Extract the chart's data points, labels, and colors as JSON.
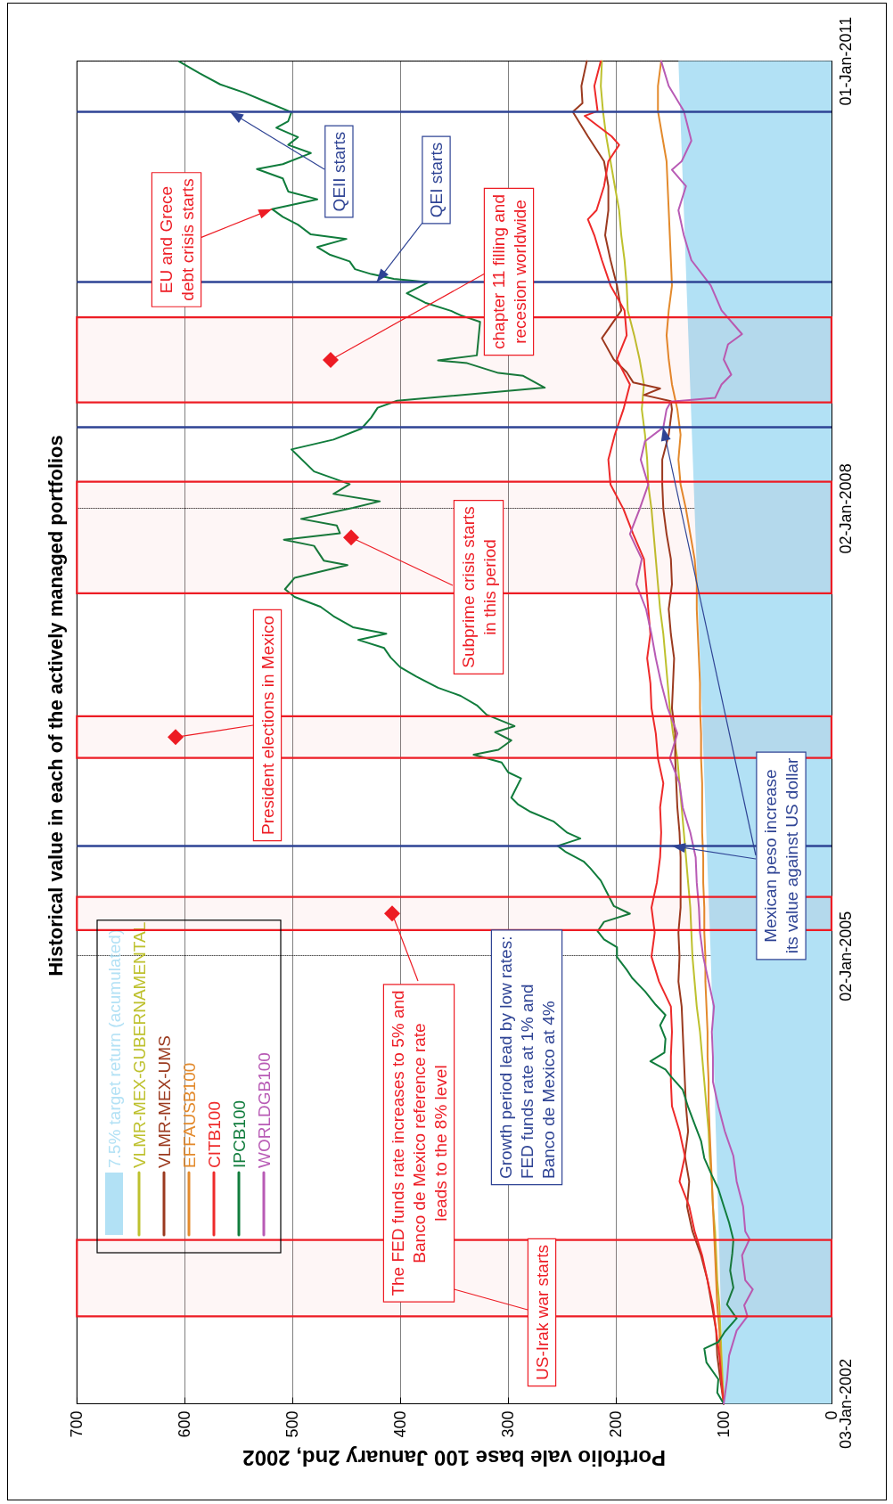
{
  "chart_data": {
    "type": "line",
    "orientation": "horizontal",
    "title": "Historical value in each of the actively managed portfolios",
    "xlabel": "Portfolio vale base 100 January 2nd, 2002",
    "xlim": [
      700,
      0
    ],
    "xticks": [
      0,
      100,
      200,
      300,
      400,
      500,
      600,
      700
    ],
    "ylim": [
      "2002-01-03",
      "2011-01-01"
    ],
    "yticks": [
      {
        "value": "2002-01-03",
        "label": "03-Jan-2002"
      },
      {
        "value": "2005-01-02",
        "label": "02-Jan-2005"
      },
      {
        "value": "2008-01-02",
        "label": "02-Jan-2008"
      },
      {
        "value": "2011-01-01",
        "label": "01-Jan-2011"
      }
    ],
    "grid": true,
    "legend": "bottom left",
    "x": [
      "2002-01-03",
      "2002-03-01",
      "2002-05-01",
      "2002-07-01",
      "2002-09-01",
      "2002-11-01",
      "2003-01-01",
      "2003-03-01",
      "2003-05-01",
      "2003-07-01",
      "2003-09-01",
      "2003-11-01",
      "2004-01-01",
      "2004-03-01",
      "2004-05-01",
      "2004-07-01",
      "2004-09-01",
      "2004-11-01",
      "2005-01-01",
      "2005-03-01",
      "2005-05-01",
      "2005-07-01",
      "2005-09-01",
      "2005-11-01",
      "2006-01-01",
      "2006-03-01",
      "2006-05-01",
      "2006-07-01",
      "2006-09-01",
      "2006-11-01",
      "2007-01-01",
      "2007-03-01",
      "2007-05-01",
      "2007-07-01",
      "2007-09-01",
      "2007-11-01",
      "2008-01-01",
      "2008-03-01",
      "2008-05-01",
      "2008-07-01",
      "2008-09-01",
      "2008-11-01",
      "2009-01-01",
      "2009-03-01",
      "2009-05-01",
      "2009-07-01",
      "2009-09-01",
      "2009-11-01",
      "2010-01-01",
      "2010-03-01",
      "2010-05-01",
      "2010-07-01",
      "2010-09-01",
      "2010-11-01",
      "2011-01-01"
    ],
    "series": [
      {
        "name": "7.5% target return (acumulated)",
        "type": "area",
        "color": "#b2e1f5",
        "x": [
          "2002-01-03",
          "2003-01-01",
          "2004-01-01",
          "2005-01-01",
          "2006-01-01",
          "2007-01-01",
          "2008-01-01",
          "2009-01-01",
          "2010-01-01",
          "2011-01-01"
        ],
        "values": [
          100,
          104,
          108,
          112,
          117,
          122,
          127,
          132,
          137,
          142
        ]
      },
      {
        "name": "VLMR-MEX-GUBERNAMENTAL",
        "color": "#bec12e",
        "values": [
          100,
          101,
          102,
          103,
          104,
          106,
          107,
          108,
          110,
          111,
          113,
          114,
          116,
          118,
          120,
          122,
          125,
          127,
          129,
          130,
          131,
          133,
          135,
          137,
          139,
          141,
          143,
          147,
          150,
          152,
          154,
          156,
          159,
          161,
          163,
          165,
          167,
          170,
          171,
          173,
          176,
          174,
          178,
          183,
          189,
          190,
          192,
          195,
          197,
          201,
          205,
          209,
          212,
          214,
          213
        ]
      },
      {
        "name": "VLMR-MEX-UMS",
        "color": "#9b3a1f",
        "x": [
          "2002-01-03",
          "2002-03-01",
          "2002-05-01",
          "2002-07-01",
          "2002-09-01",
          "2002-11-01",
          "2003-01-01",
          "2003-03-01",
          "2003-05-01",
          "2003-07-01",
          "2003-09-01",
          "2003-11-01",
          "2004-01-01",
          "2004-03-01",
          "2004-05-01",
          "2004-07-01",
          "2004-09-01",
          "2004-11-01",
          "2005-01-01",
          "2005-03-01",
          "2005-05-01",
          "2005-07-01",
          "2005-09-01",
          "2005-11-01",
          "2006-01-01",
          "2006-03-01",
          "2006-05-01",
          "2006-07-01",
          "2006-09-01",
          "2006-11-01",
          "2007-01-01",
          "2007-03-01",
          "2007-05-01",
          "2007-07-01",
          "2007-09-01",
          "2007-11-01",
          "2008-01-01",
          "2008-03-01",
          "2008-05-01",
          "2008-07-01",
          "2008-09-01",
          "2008-09-21",
          "2008-10-06",
          "2008-10-22",
          "2008-11-06",
          "2008-12-01",
          "2009-01-01",
          "2009-02-22",
          "2009-05-01",
          "2009-07-01",
          "2009-09-01",
          "2009-11-01",
          "2010-01-01",
          "2010-03-01",
          "2010-05-01",
          "2010-07-01",
          "2010-08-30",
          "2010-09-20",
          "2010-11-01",
          "2011-01-01"
        ],
        "values": [
          100,
          103,
          106,
          107,
          111,
          115,
          121,
          129,
          134,
          132,
          136,
          133,
          135,
          136,
          137,
          138,
          139,
          142,
          141,
          142,
          140,
          140,
          140,
          141,
          143,
          144,
          145,
          145,
          148,
          147,
          146,
          149,
          151,
          148,
          149,
          153,
          156,
          157,
          157,
          151,
          148,
          149,
          174,
          159,
          184,
          190,
          202,
          213,
          195,
          199,
          205,
          210,
          207,
          207,
          211,
          226,
          240,
          231,
          232,
          227
        ]
      },
      {
        "name": "EFFAUSB100",
        "color": "#e38a2c",
        "values": [
          100,
          102,
          103,
          104,
          106,
          107,
          108,
          109,
          110,
          111,
          112,
          113,
          114,
          114,
          115,
          115,
          116,
          117,
          117,
          118,
          118,
          119,
          119,
          120,
          120,
          120,
          121,
          121,
          122,
          122,
          123,
          124,
          125,
          125,
          127,
          131,
          135,
          140,
          142,
          140,
          143,
          148,
          151,
          153,
          151,
          148,
          149,
          150,
          151,
          152,
          153,
          157,
          161,
          161,
          158
        ]
      },
      {
        "name": "CITB100",
        "color": "#ee2a2a",
        "x": [
          "2002-01-03",
          "2002-03-01",
          "2002-05-01",
          "2002-07-01",
          "2002-09-01",
          "2002-11-01",
          "2003-01-01",
          "2003-03-01",
          "2003-05-01",
          "2003-07-01",
          "2003-09-01",
          "2003-11-01",
          "2004-01-01",
          "2004-03-01",
          "2004-05-01",
          "2004-07-01",
          "2004-09-01",
          "2004-11-01",
          "2005-01-01",
          "2005-03-01",
          "2005-05-01",
          "2005-07-01",
          "2005-09-01",
          "2005-11-01",
          "2006-01-01",
          "2006-03-01",
          "2006-05-01",
          "2006-07-01",
          "2006-09-01",
          "2006-11-01",
          "2007-01-01",
          "2007-03-01",
          "2007-05-01",
          "2007-07-01",
          "2007-09-01",
          "2007-11-01",
          "2008-01-01",
          "2008-03-01",
          "2008-05-01",
          "2008-07-01",
          "2008-09-01",
          "2008-11-01",
          "2009-01-01",
          "2009-03-01",
          "2009-05-01",
          "2009-07-01",
          "2009-09-01",
          "2009-11-01",
          "2009-12-10",
          "2010-01-01",
          "2010-03-01",
          "2010-05-01",
          "2010-06-10",
          "2010-07-01",
          "2010-08-20",
          "2010-09-01",
          "2010-11-01",
          "2011-01-01"
        ],
        "values": [
          100,
          102,
          104,
          107,
          110,
          115,
          120,
          127,
          132,
          141,
          136,
          141,
          148,
          149,
          149,
          148,
          149,
          160,
          167,
          164,
          167,
          162,
          159,
          158,
          159,
          156,
          161,
          163,
          167,
          168,
          171,
          168,
          170,
          172,
          174,
          184,
          193,
          205,
          207,
          201,
          193,
          187,
          199,
          190,
          192,
          205,
          213,
          220,
          226,
          218,
          211,
          207,
          197,
          204,
          229,
          217,
          220,
          214
        ]
      },
      {
        "name": "IPCB100",
        "color": "#107c3c",
        "x": [
          "2002-01-03",
          "2002-01-30",
          "2002-03-04",
          "2002-04-14",
          "2002-05-18",
          "2002-06-03",
          "2002-06-28",
          "2002-07-31",
          "2002-09-03",
          "2002-10-14",
          "2002-11-25",
          "2003-01-06",
          "2003-02-08",
          "2003-03-22",
          "2003-05-02",
          "2003-06-13",
          "2003-07-16",
          "2003-08-27",
          "2003-10-08",
          "2003-11-18",
          "2003-12-30",
          "2004-02-10",
          "2004-03-14",
          "2004-03-31",
          "2004-04-20",
          "2004-05-11",
          "2004-06-14",
          "2004-07-17",
          "2004-08-11",
          "2004-09-05",
          "2004-10-08",
          "2004-11-10",
          "2004-11-30",
          "2004-12-31",
          "2005-01-24",
          "2005-02-12",
          "2005-03-04",
          "2005-03-27",
          "2005-04-16",
          "2005-05-05",
          "2005-06-05",
          "2005-07-06",
          "2005-08-06",
          "2005-08-22",
          "2005-09-15",
          "2005-09-29",
          "2005-10-17",
          "2005-10-31",
          "2005-11-28",
          "2005-12-21",
          "2006-01-09",
          "2006-01-25",
          "2006-03-13",
          "2006-03-28",
          "2006-04-21",
          "2006-05-10",
          "2006-05-22",
          "2006-06-14",
          "2006-07-04",
          "2006-07-19",
          "2006-08-16",
          "2006-09-08",
          "2006-10-01",
          "2006-10-21",
          "2006-11-17",
          "2006-12-10",
          "2007-01-03",
          "2007-01-26",
          "2007-02-15",
          "2007-03-02",
          "2007-03-18",
          "2007-04-14",
          "2007-05-07",
          "2007-05-31",
          "2007-06-19",
          "2007-07-17",
          "2007-08-05",
          "2007-08-17",
          "2007-08-28",
          "2007-10-03",
          "2007-10-18",
          "2007-11-03",
          "2007-11-22",
          "2007-12-08",
          "2008-01-04",
          "2008-01-20",
          "2008-02-07",
          "2008-03-02",
          "2008-04-02",
          "2008-05-26",
          "2008-06-19",
          "2008-07-16",
          "2008-08-12",
          "2008-09-05",
          "2008-09-22",
          "2008-10-24",
          "2008-11-22",
          "2008-11-29",
          "2008-12-23",
          "2008-12-30",
          "2009-01-11",
          "2009-04-03",
          "2009-04-19",
          "2009-04-30",
          "2009-05-20",
          "2009-06-12",
          "2009-07-09",
          "2009-07-17",
          "2009-07-29",
          "2009-08-10",
          "2009-08-29",
          "2009-09-14",
          "2009-10-03",
          "2009-10-23",
          "2009-11-03",
          "2009-11-27",
          "2009-12-16",
          "2010-01-04",
          "2010-01-28",
          "2010-02-16",
          "2010-03-20",
          "2010-04-12",
          "2010-04-24",
          "2010-05-21",
          "2010-06-10",
          "2010-06-29",
          "2010-07-22",
          "2010-08-07",
          "2010-08-29",
          "2010-09-23",
          "2010-10-16",
          "2010-11-05",
          "2010-12-02",
          "2010-12-31"
        ],
        "values": [
          100,
          106,
          105,
          116,
          118,
          105,
          99,
          88,
          97,
          91,
          94,
          92,
          91,
          95,
          100,
          105,
          111,
          118,
          121,
          127,
          133,
          138,
          149,
          154,
          168,
          155,
          154,
          159,
          154,
          163,
          173,
          185,
          190,
          199,
          199,
          211,
          217,
          211,
          187,
          202,
          208,
          214,
          224,
          230,
          247,
          254,
          233,
          245,
          258,
          279,
          291,
          297,
          288,
          300,
          306,
          332,
          309,
          297,
          312,
          294,
          320,
          329,
          344,
          365,
          385,
          400,
          409,
          415,
          439,
          413,
          444,
          462,
          474,
          498,
          507,
          498,
          468,
          449,
          471,
          480,
          508,
          456,
          459,
          492,
          444,
          419,
          462,
          447,
          480,
          501,
          462,
          436,
          427,
          421,
          403,
          266,
          286,
          309,
          338,
          365,
          329,
          326,
          344,
          353,
          377,
          394,
          374,
          406,
          427,
          442,
          447,
          465,
          477,
          450,
          483,
          495,
          509,
          519,
          477,
          504,
          509,
          533,
          509,
          483,
          504,
          495,
          515,
          504,
          501,
          524,
          545,
          567,
          586,
          605
        ]
      },
      {
        "name": "WORLDGB100",
        "color": "#b85bb5",
        "x": [
          "2002-01-03",
          "2002-03-01",
          "2002-05-01",
          "2002-07-01",
          "2002-08-05",
          "2002-09-01",
          "2002-10-10",
          "2002-11-01",
          "2003-01-01",
          "2003-02-10",
          "2003-03-01",
          "2003-05-01",
          "2003-07-01",
          "2003-09-01",
          "2003-11-01",
          "2004-01-01",
          "2004-03-01",
          "2004-05-01",
          "2004-07-01",
          "2004-09-01",
          "2004-11-01",
          "2005-01-01",
          "2005-03-01",
          "2005-05-01",
          "2005-07-01",
          "2005-09-01",
          "2005-11-01",
          "2006-01-01",
          "2006-03-01",
          "2006-05-01",
          "2006-07-01",
          "2006-09-01",
          "2006-11-01",
          "2007-01-01",
          "2007-03-01",
          "2007-05-01",
          "2007-07-01",
          "2007-09-01",
          "2007-11-01",
          "2008-01-01",
          "2008-03-01",
          "2008-05-01",
          "2008-06-15",
          "2008-07-19",
          "2008-09-01",
          "2008-09-20",
          "2008-09-29",
          "2008-11-01",
          "2008-11-25",
          "2009-01-01",
          "2009-02-07",
          "2009-03-04",
          "2009-05-01",
          "2009-07-01",
          "2009-09-01",
          "2009-11-01",
          "2010-01-01",
          "2010-03-01",
          "2010-04-10",
          "2010-05-01",
          "2010-06-20",
          "2010-07-01",
          "2010-09-01",
          "2010-11-01",
          "2011-01-01"
        ],
        "values": [
          100,
          97,
          95,
          88,
          78,
          81,
          73,
          80,
          83,
          76,
          80,
          82,
          88,
          91,
          99,
          105,
          110,
          110,
          111,
          109,
          114,
          119,
          122,
          123,
          125,
          126,
          131,
          138,
          141,
          150,
          143,
          152,
          158,
          163,
          167,
          172,
          181,
          176,
          187,
          178,
          170,
          177,
          173,
          156,
          153,
          149,
          108,
          102,
          93,
          100,
          96,
          83,
          102,
          112,
          130,
          137,
          142,
          135,
          148,
          139,
          130,
          131,
          137,
          151,
          158
        ]
      }
    ],
    "bands": [
      {
        "axis": "y",
        "from": "2002-08-05",
        "to": "2003-02-08",
        "label": "US-Irak war starts",
        "color": "#ed1c24"
      },
      {
        "axis": "y",
        "from": "2005-03-07",
        "to": "2005-05-27",
        "label": "The FED funds rate increases to 5% and\nBanco de Mexico reference rate\nleads to the 8% level",
        "color": "#ed1c24"
      },
      {
        "axis": "y",
        "from": "2006-05-02",
        "to": "2006-08-12",
        "label": "President elections in Mexico",
        "color": "#ed1c24"
      },
      {
        "axis": "y",
        "from": "2007-06-09",
        "to": "2008-03-08",
        "label": "Subprime crisis starts\nin this period",
        "color": "#ed1c24"
      },
      {
        "axis": "y",
        "from": "2008-09-18",
        "to": "2009-04-14",
        "label": "chapter 11 filling and\nrecesion worldwide",
        "color": "#ed1c24"
      }
    ],
    "ref_lines": [
      {
        "axis": "y",
        "value": "2005-09-29",
        "color": "#2e4394"
      },
      {
        "axis": "y",
        "value": "2008-07-19",
        "color": "#2e4394"
      },
      {
        "axis": "y",
        "value": "2009-07-09",
        "label": "QEI starts",
        "color": "#2e4394"
      },
      {
        "axis": "y",
        "value": "2010-08-30",
        "label": "QEII starts",
        "color": "#2e4394"
      }
    ],
    "annotations": [
      "Growth period lead by low rates:\nFED funds rate at 1% and\nBanco de Mexico at 4%",
      {
        "text": "Mexican peso increase\nits value against US dollar",
        "x": 148,
        "y": "2005-09-29"
      },
      {
        "text": "EU and Grece\ndebt crisis starts",
        "x": 519,
        "y": "2010-01-04"
      }
    ]
  }
}
